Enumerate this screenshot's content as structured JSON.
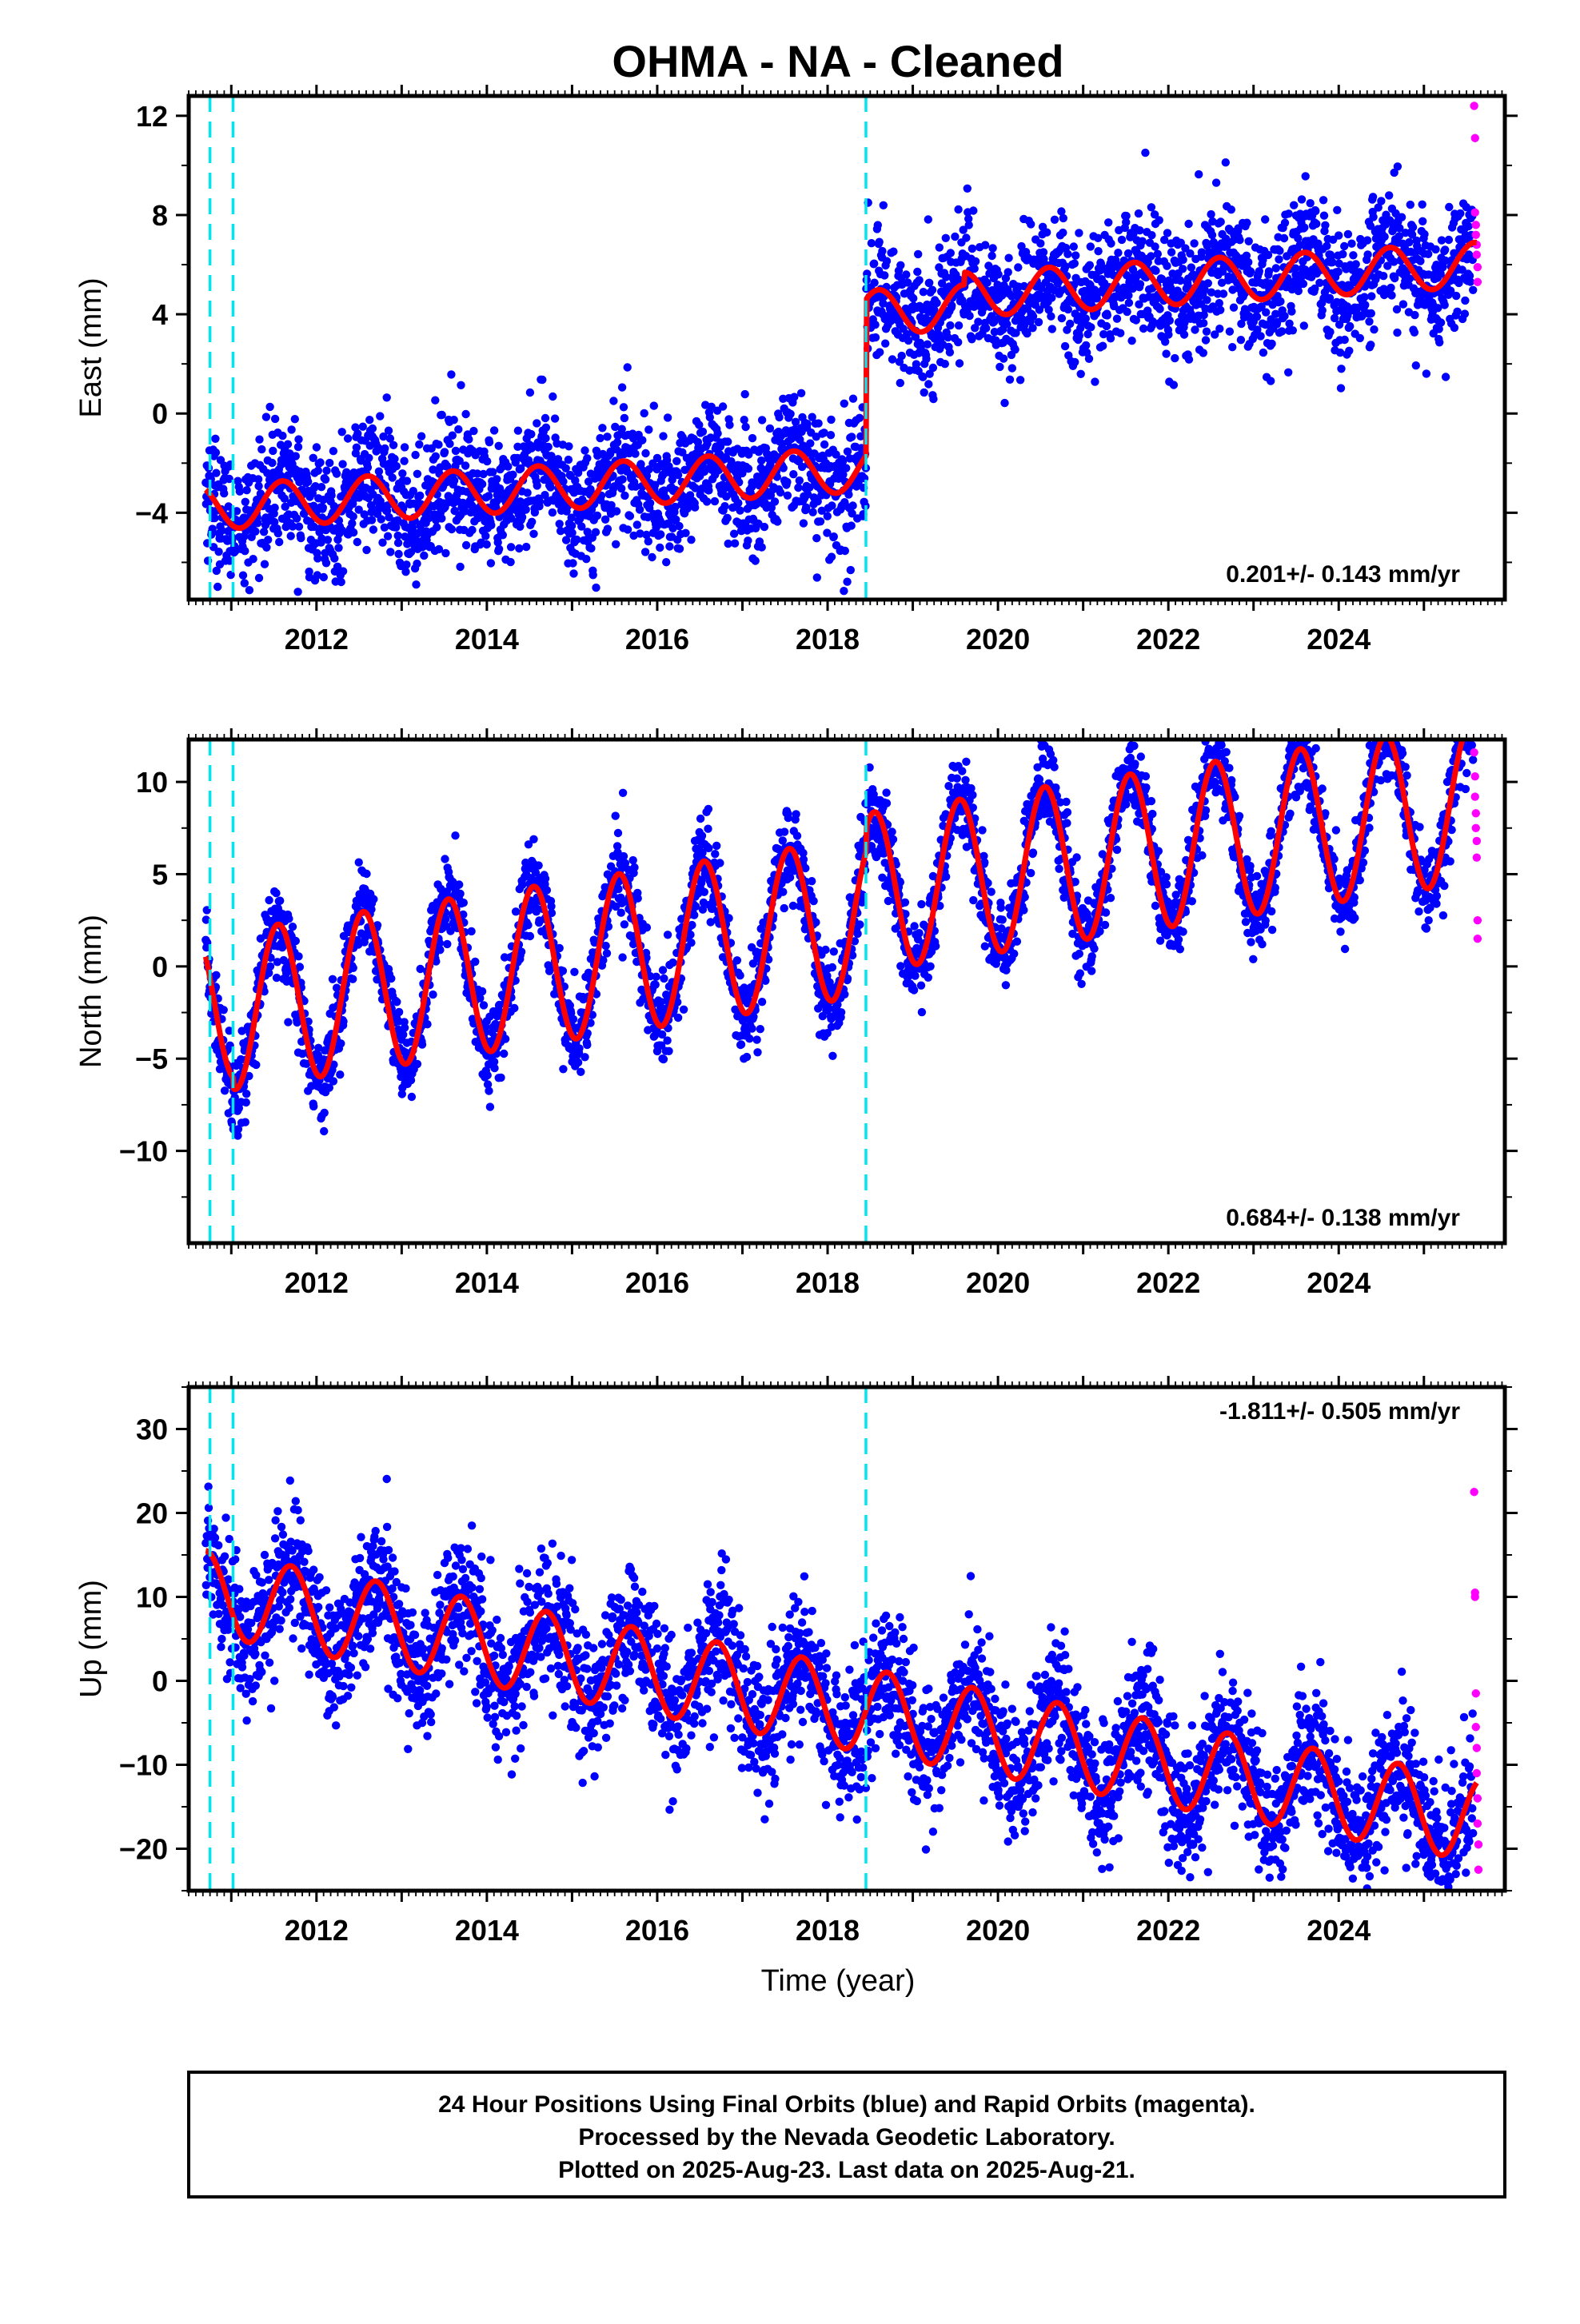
{
  "title": "OHMA  - NA - Cleaned",
  "xlabel": "Time (year)",
  "footer": {
    "lines": [
      "24 Hour Positions Using Final Orbits (blue) and Rapid Orbits (magenta).",
      "Processed by the Nevada Geodetic Laboratory.",
      "Plotted on 2025-Aug-23. Last data on 2025-Aug-21."
    ]
  },
  "colors": {
    "final_orbits": "#0000ff",
    "rapid_orbits": "#ff00ff",
    "model": "#ff0000",
    "events": "#00e5f0"
  },
  "chart_data": [
    {
      "type": "scatter",
      "component": "east",
      "ylabel": "East (mm)",
      "ylim": [
        -7.5,
        12.8
      ],
      "yticks": [
        -4,
        0,
        4,
        8,
        12
      ],
      "xlim": [
        2010.5,
        2025.95
      ],
      "xticks": [
        2012,
        2014,
        2016,
        2018,
        2020,
        2022,
        2024
      ],
      "rate_label": "0.201+/- 0.143 mm/yr",
      "rate_position": "bottom-right",
      "event_lines_x": [
        2010.75,
        2011.02,
        2018.45
      ],
      "model_offsets": [
        {
          "start": 2010.7,
          "level": -3.8
        },
        {
          "start": 2018.45,
          "level": 2.5
        },
        {
          "start": 2019.6,
          "level": 3.0
        }
      ],
      "model_seasonal_amplitude": 0.9,
      "model_seasonal_peak": 0.6,
      "noise_sd": 1.3,
      "rapid_points": [
        {
          "x": 2025.59,
          "y": 12.4
        },
        {
          "x": 2025.6,
          "y": 11.1
        },
        {
          "x": 2025.6,
          "y": 8.1
        },
        {
          "x": 2025.61,
          "y": 7.6
        },
        {
          "x": 2025.61,
          "y": 7.2
        },
        {
          "x": 2025.62,
          "y": 6.8
        },
        {
          "x": 2025.62,
          "y": 6.4
        },
        {
          "x": 2025.63,
          "y": 5.9
        },
        {
          "x": 2025.63,
          "y": 5.3
        }
      ]
    },
    {
      "type": "scatter",
      "component": "north",
      "ylabel": "North (mm)",
      "ylim": [
        -15,
        12.3
      ],
      "yticks": [
        -10,
        -5,
        0,
        5,
        10
      ],
      "xlim": [
        2010.5,
        2025.95
      ],
      "xticks": [
        2012,
        2014,
        2016,
        2018,
        2020,
        2022,
        2024
      ],
      "rate_label": "0.684+/- 0.138 mm/yr",
      "rate_position": "bottom-right",
      "event_lines_x": [
        2010.75,
        2011.02,
        2018.45
      ],
      "model_offsets": [
        {
          "start": 2010.7,
          "level": -2.0
        },
        {
          "start": 2011.02,
          "level": -2.6
        },
        {
          "start": 2018.45,
          "level": -1.3
        }
      ],
      "model_seasonal_amplitude": 4.3,
      "model_seasonal_peak": 0.55,
      "noise_sd": 1.2,
      "rapid_points": [
        {
          "x": 2025.59,
          "y": 11.6
        },
        {
          "x": 2025.6,
          "y": 10.3
        },
        {
          "x": 2025.6,
          "y": 9.2
        },
        {
          "x": 2025.61,
          "y": 8.3
        },
        {
          "x": 2025.61,
          "y": 7.5
        },
        {
          "x": 2025.62,
          "y": 6.8
        },
        {
          "x": 2025.62,
          "y": 5.9
        },
        {
          "x": 2025.63,
          "y": 2.5
        },
        {
          "x": 2025.63,
          "y": 1.5
        }
      ]
    },
    {
      "type": "scatter",
      "component": "up",
      "ylabel": "Up (mm)",
      "ylim": [
        -25,
        35
      ],
      "yticks": [
        -20,
        -10,
        0,
        10,
        20,
        30
      ],
      "xlim": [
        2010.5,
        2025.95
      ],
      "xticks": [
        2012,
        2014,
        2016,
        2018,
        2020,
        2022,
        2024
      ],
      "rate_label": "-1.811+/- 0.505 mm/yr",
      "rate_position": "top-right",
      "event_lines_x": [
        2010.75,
        2011.02,
        2018.45
      ],
      "model_offsets": [
        {
          "start": 2010.7,
          "level": 10.5
        }
      ],
      "model_seasonal_amplitude": 5.0,
      "model_seasonal_peak": 0.7,
      "noise_sd": 4.0,
      "rapid_points": [
        {
          "x": 2025.59,
          "y": 22.5
        },
        {
          "x": 2025.6,
          "y": 10.5
        },
        {
          "x": 2025.6,
          "y": 10.0
        },
        {
          "x": 2025.61,
          "y": -1.5
        },
        {
          "x": 2025.61,
          "y": -5.5
        },
        {
          "x": 2025.62,
          "y": -8.0
        },
        {
          "x": 2025.62,
          "y": -11.0
        },
        {
          "x": 2025.63,
          "y": -14.0
        },
        {
          "x": 2025.63,
          "y": -17.0
        },
        {
          "x": 2025.64,
          "y": -19.5
        },
        {
          "x": 2025.64,
          "y": -22.5
        }
      ]
    }
  ]
}
